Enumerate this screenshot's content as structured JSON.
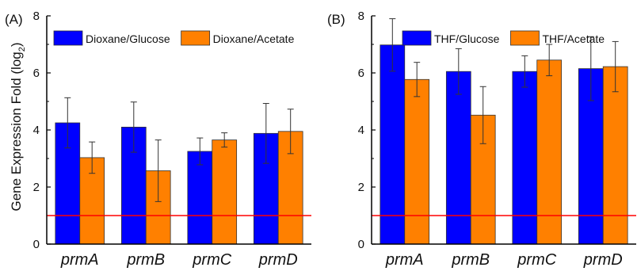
{
  "ylabel_main": "Gene Expression Fold (log",
  "ylabel_sub": "2",
  "ylabel_close": ")",
  "chart_data": [
    {
      "type": "bar",
      "panel_label": "(A)",
      "categories": [
        "prmA",
        "prmB",
        "prmC",
        "prmD"
      ],
      "series": [
        {
          "name": "Dioxane/Glucose",
          "color": "#0000ff",
          "values": [
            4.25,
            4.1,
            3.25,
            3.88
          ],
          "errors": [
            0.88,
            0.88,
            0.47,
            1.05
          ]
        },
        {
          "name": "Dioxane/Acetate",
          "color": "#ff8000",
          "values": [
            3.03,
            2.57,
            3.65,
            3.95
          ],
          "errors": [
            0.55,
            1.08,
            0.25,
            0.78
          ]
        }
      ],
      "threshold": 1,
      "threshold_color": "#ff0000",
      "ylim": [
        0,
        8
      ],
      "yticks": [
        "0",
        "2",
        "4",
        "6",
        "8"
      ],
      "legend_position": "top"
    },
    {
      "type": "bar",
      "panel_label": "(B)",
      "categories": [
        "prmA",
        "prmB",
        "prmC",
        "prmD"
      ],
      "series": [
        {
          "name": "THF/Glucose",
          "color": "#0000ff",
          "values": [
            6.98,
            6.05,
            6.05,
            6.15
          ],
          "errors": [
            0.92,
            0.8,
            0.55,
            1.12
          ]
        },
        {
          "name": "THF/Acetate",
          "color": "#ff8000",
          "values": [
            5.77,
            4.52,
            6.45,
            6.22
          ],
          "errors": [
            0.6,
            1.0,
            0.55,
            0.88
          ]
        }
      ],
      "threshold": 1,
      "threshold_color": "#ff0000",
      "ylim": [
        0,
        8
      ],
      "yticks": [
        "0",
        "2",
        "4",
        "6",
        "8"
      ],
      "legend_position": "top"
    }
  ]
}
